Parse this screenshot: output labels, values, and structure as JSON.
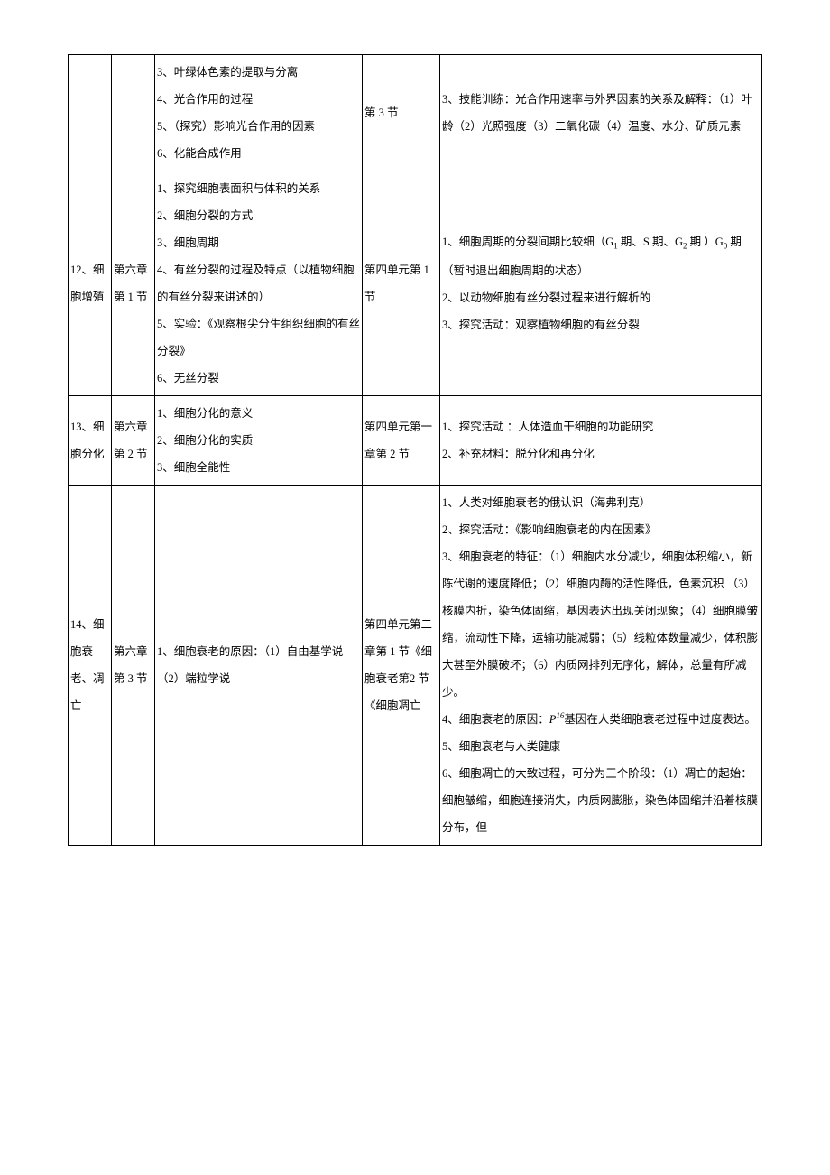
{
  "table": {
    "rows": [
      {
        "col1": "",
        "col2": "",
        "col3": "3、叶绿体色素的提取与分离\n4、光合作用的过程\n5、（探究）影响光合作用的因素\n6、化能合成作用",
        "col4": "第 3 节",
        "col5": "3、技能训练：光合作用速率与外界因素的关系及解释：（1）叶龄（2）光照强度（3）二氧化碳（4）温度、水分、矿质元素"
      },
      {
        "col1": "12、细胞增殖",
        "col2": "第六章第 1 节",
        "col3": "1、探究细胞表面积与体积的关系\n2、细胞分裂的方式\n3、细胞周期\n4、有丝分裂的过程及特点（以植物细胞的有丝分裂来讲述的）\n5、实验：《观察根尖分生组织细胞的有丝分裂》\n6、无丝分裂",
        "col4": "第四单元第 1 节",
        "col5_parts": [
          {
            "text": "1、细胞周期的分裂间期比较细（G"
          },
          {
            "text": "1",
            "sub": true
          },
          {
            "text": " 期、S 期、G"
          },
          {
            "text": "2",
            "sub": true
          },
          {
            "text": " 期 ）G"
          },
          {
            "text": "0",
            "sub": true
          },
          {
            "text": " 期（暂时退出细胞周期的状态）\n2、以动物细胞有丝分裂过程来进行解析的\n3、探究活动：观察植物细胞的有丝分裂"
          }
        ]
      },
      {
        "col1": "13、细胞分化",
        "col2": "第六章第 2 节",
        "col3": "1、细胞分化的意义\n2、细胞分化的实质\n3、细胞全能性",
        "col4": "第四单元第一章第 2 节",
        "col5": "1、探究活动 ：人体造血干细胞的功能研究\n2、补充材料：脱分化和再分化"
      },
      {
        "col1": "14、细胞衰老、凋亡",
        "col2": "第六章第 3 节",
        "col3": "1、细胞衰老的原因：（1）自由基学说（2）端粒学说",
        "col4": "第四单元第二章第 1 节《细胞衰老第2 节《细胞凋亡",
        "col5_parts": [
          {
            "text": "1、人类对细胞衰老的俄认识（海弗利克）\n2、探究活动：《影响细胞衰老的内在因素》\n3、细胞衰老的特征：（1）细胞内水分减少，细胞体积缩小，新陈代谢的速度降低；（2）细胞内酶的活性降低，色素沉积 （3）核膜内折，染色体固缩，基因表达出现关闭现象；（4）细胞膜皱缩，流动性下降，运输功能减弱；（5）线粒体数量减少，体积膨大甚至外膜破坏；（6）内质网排列无序化，解体，总量有所减少。\n4、细胞衰老的原因："
          },
          {
            "text": "P",
            "italic": true
          },
          {
            "text": "16",
            "sup": true
          },
          {
            "text": "基因在人类细胞衰老过程中过度表达。\n5、细胞衰老与人类健康\n6、细胞凋亡的大致过程，可分为三个阶段：（1）凋亡的起始：细胞皱缩，细胞连接消失，内质网膨胀，染色体固缩并沿着核膜分布，但"
          }
        ]
      }
    ]
  }
}
